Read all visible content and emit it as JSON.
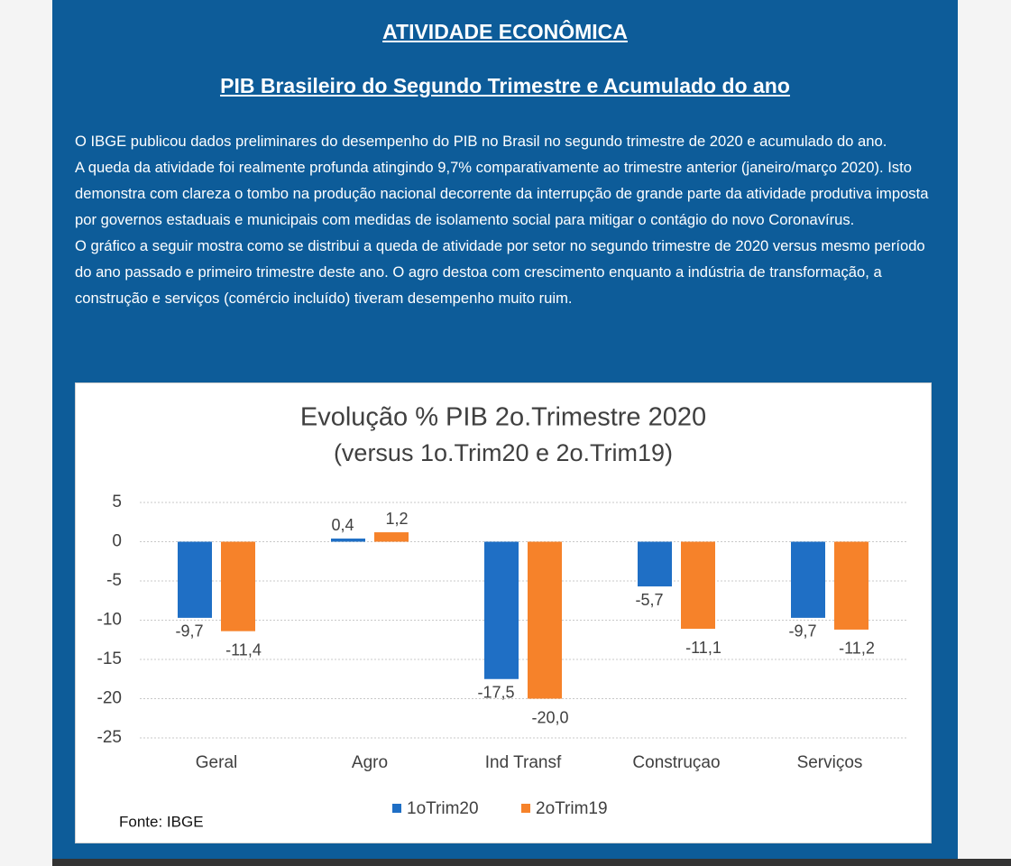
{
  "header": {
    "title": "ATIVIDADE ECONÔMICA",
    "subtitle": "PIB Brasileiro do Segundo Trimestre e Acumulado do ano"
  },
  "paragraphs": [
    "O IBGE publicou dados preliminares do desempenho do PIB no Brasil no segundo trimestre de 2020 e acumulado do ano.",
    "A queda da atividade foi realmente profunda atingindo 9,7% comparativamente ao trimestre anterior (janeiro/março 2020). Isto demonstra com clareza o tombo na produção nacional decorrente da interrupção de grande parte da atividade produtiva imposta por governos estaduais e municipais com medidas de isolamento social para mitigar o contágio do novo Coronavírus.",
    "O gráfico a seguir mostra como se distribui a queda de atividade por setor no segundo trimestre de 2020 versus mesmo período do ano passado e primeiro trimestre deste ano. O agro destoa com crescimento enquanto a indústria de transformação, a construção e serviços (comércio incluído) tiveram desempenho muito ruim."
  ],
  "chart_data": {
    "type": "bar",
    "title": "Evolução % PIB 2o.Trimestre 2020",
    "subtitle": "(versus 1o.Trim20 e 2o.Trim19)",
    "categories": [
      "Geral",
      "Agro",
      "Ind Transf",
      "Construçao",
      "Serviços"
    ],
    "series": [
      {
        "name": "1oTrim20",
        "color": "#1f6fc5",
        "values": [
          -9.7,
          0.4,
          -17.5,
          -5.7,
          -9.7
        ],
        "value_labels": [
          "-9,7",
          "0,4",
          "-17,5",
          "-5,7",
          "-9,7"
        ]
      },
      {
        "name": "2oTrim19",
        "color": "#f6822a",
        "values": [
          -11.4,
          1.2,
          -20.0,
          -11.1,
          -11.2
        ],
        "value_labels": [
          "-11,4",
          "1,2",
          "-20,0",
          "-11,1",
          "-11,2"
        ]
      }
    ],
    "ylim": [
      -25,
      5
    ],
    "yticks": [
      5,
      0,
      -5,
      -10,
      -15,
      -20,
      -25
    ],
    "grid": true,
    "legend": "bottom",
    "annotation": "Fonte:  IBGE"
  }
}
